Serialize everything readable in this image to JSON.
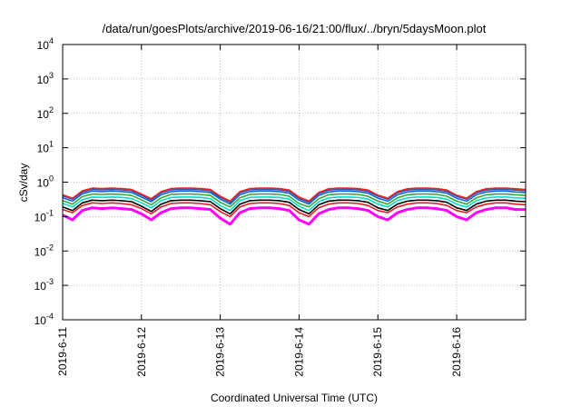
{
  "chart_data": {
    "type": "line",
    "title": "/data/run/goesPlots/archive/2019-06-16/21:00/flux/../bryn/5daysMoon.plot",
    "xlabel": "Coordinated Universal Time (UTC)",
    "ylabel": "cSv/day",
    "yscale": "log",
    "ylim_exp": [
      -4,
      4
    ],
    "y_ticks": [
      {
        "base": "10",
        "exp": "-4"
      },
      {
        "base": "10",
        "exp": "-3"
      },
      {
        "base": "10",
        "exp": "-2"
      },
      {
        "base": "10",
        "exp": "-1"
      },
      {
        "base": "10",
        "exp": "0"
      },
      {
        "base": "10",
        "exp": "1"
      },
      {
        "base": "10",
        "exp": "2"
      },
      {
        "base": "10",
        "exp": "3"
      },
      {
        "base": "10",
        "exp": "4"
      }
    ],
    "xlim": [
      "2019-06-11",
      "2019-06-16 21:00"
    ],
    "x_ticks": [
      "2019-6-11",
      "2019-6-12",
      "2019-6-13",
      "2019-6-14",
      "2019-6-15",
      "2019-6-16"
    ],
    "grid": true,
    "legend": "none",
    "series_colors": [
      "#ff00ff",
      "#e8192c",
      "#000000",
      "#00ddcc",
      "#33aa33",
      "#1166dd",
      "#3355aa",
      "#ee2222"
    ],
    "x_hours": [
      0,
      3,
      6,
      9,
      12,
      15,
      18,
      21,
      24,
      27,
      30,
      33,
      36,
      39,
      42,
      45,
      48,
      51,
      54,
      57,
      60,
      63,
      66,
      69,
      72,
      75,
      78,
      81,
      84,
      87,
      90,
      93,
      96,
      99,
      102,
      105,
      108,
      111,
      114,
      117,
      120,
      123,
      126,
      129,
      132,
      135,
      138,
      141
    ],
    "series": [
      {
        "values": [
          0.11,
          0.08,
          0.15,
          0.18,
          0.17,
          0.18,
          0.17,
          0.16,
          0.12,
          0.08,
          0.13,
          0.17,
          0.18,
          0.18,
          0.17,
          0.16,
          0.09,
          0.06,
          0.13,
          0.17,
          0.18,
          0.18,
          0.17,
          0.15,
          0.08,
          0.06,
          0.12,
          0.16,
          0.18,
          0.18,
          0.17,
          0.15,
          0.1,
          0.08,
          0.13,
          0.16,
          0.18,
          0.18,
          0.17,
          0.15,
          0.1,
          0.08,
          0.13,
          0.16,
          0.18,
          0.18,
          0.16,
          0.16
        ]
      },
      {
        "values": [
          0.16,
          0.13,
          0.21,
          0.25,
          0.24,
          0.25,
          0.24,
          0.22,
          0.17,
          0.12,
          0.19,
          0.24,
          0.25,
          0.25,
          0.24,
          0.22,
          0.14,
          0.1,
          0.19,
          0.24,
          0.25,
          0.25,
          0.24,
          0.21,
          0.13,
          0.1,
          0.18,
          0.23,
          0.25,
          0.25,
          0.24,
          0.21,
          0.15,
          0.13,
          0.19,
          0.23,
          0.25,
          0.25,
          0.24,
          0.21,
          0.15,
          0.13,
          0.19,
          0.23,
          0.25,
          0.25,
          0.23,
          0.22
        ]
      },
      {
        "values": [
          0.19,
          0.15,
          0.25,
          0.3,
          0.29,
          0.3,
          0.29,
          0.27,
          0.2,
          0.14,
          0.23,
          0.29,
          0.3,
          0.3,
          0.29,
          0.27,
          0.17,
          0.12,
          0.23,
          0.29,
          0.3,
          0.3,
          0.29,
          0.26,
          0.16,
          0.12,
          0.22,
          0.28,
          0.3,
          0.3,
          0.29,
          0.26,
          0.18,
          0.15,
          0.23,
          0.28,
          0.3,
          0.3,
          0.29,
          0.26,
          0.18,
          0.15,
          0.23,
          0.28,
          0.3,
          0.3,
          0.28,
          0.27
        ]
      },
      {
        "values": [
          0.24,
          0.19,
          0.31,
          0.37,
          0.36,
          0.37,
          0.36,
          0.33,
          0.25,
          0.18,
          0.29,
          0.36,
          0.37,
          0.37,
          0.36,
          0.33,
          0.21,
          0.15,
          0.29,
          0.36,
          0.37,
          0.37,
          0.36,
          0.32,
          0.2,
          0.15,
          0.27,
          0.35,
          0.37,
          0.37,
          0.36,
          0.32,
          0.23,
          0.19,
          0.29,
          0.35,
          0.37,
          0.37,
          0.36,
          0.32,
          0.23,
          0.19,
          0.29,
          0.35,
          0.37,
          0.37,
          0.35,
          0.34
        ]
      },
      {
        "values": [
          0.29,
          0.23,
          0.38,
          0.45,
          0.44,
          0.45,
          0.44,
          0.41,
          0.31,
          0.22,
          0.35,
          0.44,
          0.45,
          0.45,
          0.44,
          0.41,
          0.26,
          0.19,
          0.35,
          0.44,
          0.45,
          0.45,
          0.44,
          0.39,
          0.24,
          0.19,
          0.33,
          0.43,
          0.45,
          0.45,
          0.44,
          0.39,
          0.28,
          0.23,
          0.35,
          0.43,
          0.45,
          0.45,
          0.44,
          0.39,
          0.28,
          0.23,
          0.35,
          0.43,
          0.45,
          0.45,
          0.43,
          0.41
        ]
      },
      {
        "values": [
          0.35,
          0.28,
          0.46,
          0.55,
          0.53,
          0.55,
          0.53,
          0.5,
          0.37,
          0.27,
          0.43,
          0.53,
          0.55,
          0.55,
          0.53,
          0.5,
          0.32,
          0.23,
          0.43,
          0.53,
          0.55,
          0.55,
          0.53,
          0.48,
          0.3,
          0.23,
          0.41,
          0.52,
          0.55,
          0.55,
          0.53,
          0.48,
          0.34,
          0.28,
          0.43,
          0.52,
          0.55,
          0.55,
          0.53,
          0.48,
          0.34,
          0.28,
          0.43,
          0.52,
          0.55,
          0.55,
          0.52,
          0.5
        ]
      },
      {
        "values": [
          0.4,
          0.32,
          0.52,
          0.62,
          0.6,
          0.62,
          0.6,
          0.56,
          0.42,
          0.3,
          0.49,
          0.6,
          0.62,
          0.62,
          0.6,
          0.56,
          0.36,
          0.26,
          0.49,
          0.6,
          0.62,
          0.62,
          0.6,
          0.54,
          0.34,
          0.26,
          0.46,
          0.59,
          0.62,
          0.62,
          0.6,
          0.54,
          0.39,
          0.32,
          0.49,
          0.59,
          0.62,
          0.62,
          0.6,
          0.54,
          0.39,
          0.32,
          0.49,
          0.59,
          0.62,
          0.62,
          0.59,
          0.56
        ]
      },
      {
        "values": [
          0.43,
          0.34,
          0.56,
          0.67,
          0.65,
          0.67,
          0.65,
          0.61,
          0.45,
          0.33,
          0.53,
          0.65,
          0.67,
          0.67,
          0.65,
          0.61,
          0.39,
          0.28,
          0.53,
          0.65,
          0.67,
          0.67,
          0.65,
          0.59,
          0.37,
          0.28,
          0.5,
          0.64,
          0.67,
          0.67,
          0.65,
          0.59,
          0.42,
          0.34,
          0.53,
          0.64,
          0.67,
          0.67,
          0.65,
          0.59,
          0.42,
          0.34,
          0.53,
          0.64,
          0.67,
          0.67,
          0.64,
          0.61
        ]
      }
    ]
  }
}
